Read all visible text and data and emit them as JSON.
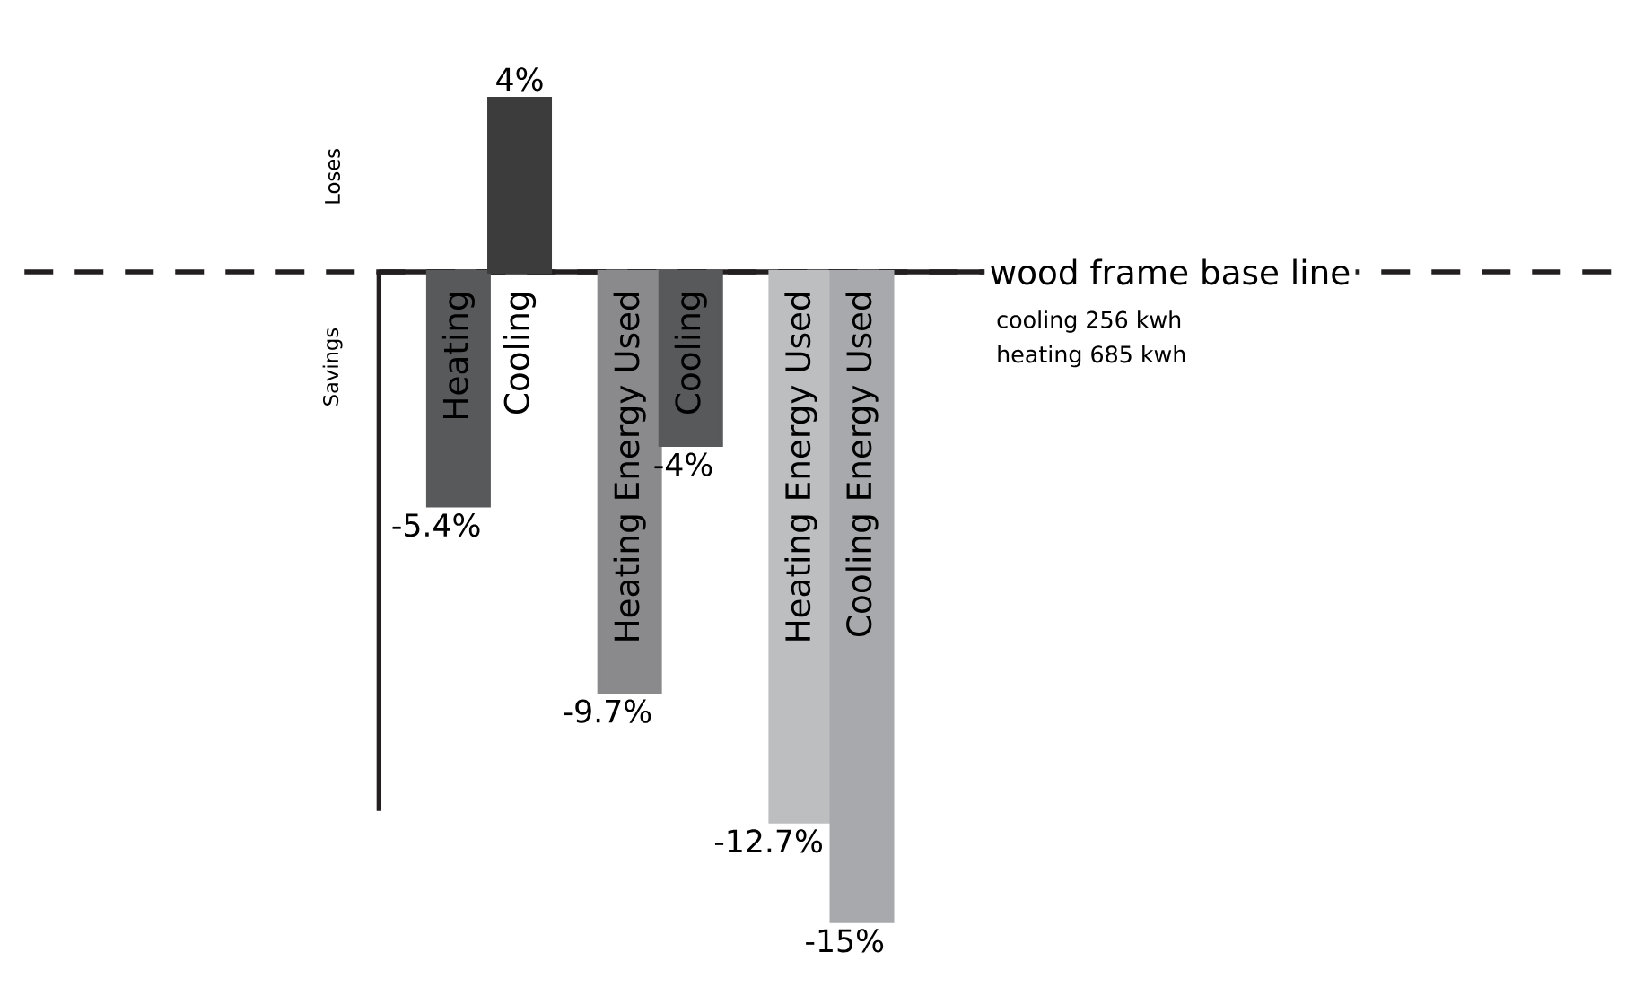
{
  "chart_data": {
    "type": "bar",
    "categories": [
      "Heating",
      "Cooling",
      "Heating Energy Used",
      "Cooling",
      "Heating Energy Used",
      "Cooling Energy Used"
    ],
    "values": [
      -5.4,
      4,
      -9.7,
      -4,
      -12.7,
      -15
    ],
    "value_labels": [
      "-5.4%",
      "4%",
      "-9.7%",
      "-4%",
      "-12.7%",
      "-15%"
    ],
    "colors": [
      "#58595b",
      "#3c3c3c",
      "#8a8a8c",
      "#58595b",
      "#bcbec0",
      "#a7a9ac"
    ],
    "ref_lines": [
      {
        "axis": "y",
        "value": 0,
        "label": "wood frame base line",
        "line_style": "dashed",
        "color": "#231f20"
      }
    ],
    "annotations": [
      "Loses",
      "Savings",
      "cooling 256 kwh",
      "heating 685 kwh"
    ]
  }
}
